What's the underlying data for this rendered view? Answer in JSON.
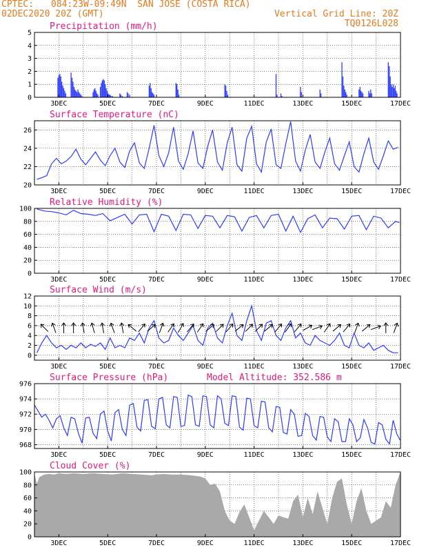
{
  "header": {
    "source": "CPTEC:",
    "location": "084:23W-09:49N  SAN JOSE (COSTA RICA)",
    "run": "02DEC2020 20Z (GMT)",
    "grid_note": "Vertical Grid Line: 20Z",
    "code": "TQ0126L028"
  },
  "chart_data": [
    {
      "type": "bar",
      "title": "Precipitation (mm/h)",
      "ylim": [
        0,
        5
      ],
      "yticks": [
        0,
        1,
        2,
        3,
        4,
        5
      ],
      "xticks": [
        "3DEC",
        "5DEC",
        "7DEC",
        "9DEC",
        "11DEC",
        "13DEC",
        "15DEC",
        "17DEC"
      ],
      "color": "#2b3bff",
      "x_day": [
        2.96,
        3.0,
        3.04,
        3.08,
        3.12,
        3.16,
        3.2,
        3.24,
        3.28,
        3.5,
        3.54,
        3.58,
        3.62,
        3.66,
        3.7,
        3.74,
        3.78,
        3.82,
        3.86,
        3.9,
        3.94,
        4.4,
        4.44,
        4.48,
        4.52,
        4.56,
        4.6,
        4.7,
        4.74,
        4.78,
        4.82,
        4.86,
        4.9,
        4.94,
        4.98,
        5.02,
        5.06,
        5.1,
        5.14,
        5.2,
        5.5,
        5.54,
        5.6,
        5.8,
        5.84,
        5.9,
        6.7,
        6.74,
        6.78,
        6.82,
        6.86,
        6.9,
        7.8,
        7.84,
        7.88,
        7.92,
        9.8,
        9.84,
        9.88,
        9.92,
        11.9,
        11.94,
        12.1,
        12.14,
        12.9,
        12.94,
        13.7,
        13.74,
        14.6,
        14.64,
        14.68,
        14.72,
        14.76,
        14.8,
        15.3,
        15.34,
        15.38,
        15.42,
        15.46,
        15.7,
        15.74,
        15.78,
        15.82,
        16.5,
        16.54,
        16.58,
        16.62,
        16.66,
        16.7,
        16.74,
        16.78,
        16.82,
        16.86
      ],
      "values": [
        1.5,
        1.7,
        1.8,
        1.6,
        1.2,
        0.9,
        0.7,
        0.5,
        0.3,
        1.9,
        1.5,
        1.2,
        0.8,
        0.6,
        0.5,
        0.4,
        0.6,
        0.4,
        0.3,
        0.2,
        0.1,
        0.4,
        0.6,
        0.7,
        0.5,
        0.3,
        0.2,
        0.8,
        1.1,
        1.3,
        1.4,
        1.3,
        1.0,
        0.7,
        0.5,
        0.3,
        0.2,
        0.2,
        0.1,
        0.1,
        0.3,
        0.2,
        0.1,
        0.4,
        0.3,
        0.2,
        0.9,
        1.1,
        0.7,
        0.4,
        0.3,
        0.2,
        1.1,
        1.0,
        0.6,
        0.2,
        1.0,
        0.9,
        0.5,
        0.2,
        1.8,
        0.2,
        0.3,
        0.1,
        0.8,
        0.4,
        0.6,
        0.3,
        2.7,
        1.6,
        0.9,
        0.6,
        0.4,
        0.2,
        0.6,
        0.8,
        0.5,
        0.4,
        0.3,
        0.5,
        0.3,
        0.6,
        0.3,
        2.7,
        2.4,
        1.6,
        1.0,
        0.8,
        1.0,
        0.7,
        0.9,
        0.5,
        0.3
      ]
    },
    {
      "type": "line",
      "title": "Surface Temperature (nC)",
      "ylim": [
        20,
        27
      ],
      "yticks": [
        20,
        22,
        24,
        26
      ],
      "xticks": [
        "3DEC",
        "5DEC",
        "7DEC",
        "9DEC",
        "11DEC",
        "13DEC",
        "15DEC",
        "17DEC"
      ],
      "color": "#2b3bff",
      "x_day": [
        2.1,
        2.3,
        2.5,
        2.7,
        2.9,
        3.1,
        3.3,
        3.5,
        3.7,
        3.9,
        4.1,
        4.3,
        4.5,
        4.7,
        4.9,
        5.1,
        5.3,
        5.5,
        5.7,
        5.9,
        6.1,
        6.3,
        6.5,
        6.7,
        6.9,
        7.1,
        7.3,
        7.5,
        7.7,
        7.9,
        8.1,
        8.3,
        8.5,
        8.7,
        8.9,
        9.1,
        9.3,
        9.5,
        9.7,
        9.9,
        10.1,
        10.3,
        10.5,
        10.7,
        10.9,
        11.1,
        11.3,
        11.5,
        11.7,
        11.9,
        12.1,
        12.3,
        12.5,
        12.7,
        12.9,
        13.1,
        13.3,
        13.5,
        13.7,
        13.9,
        14.1,
        14.3,
        14.5,
        14.7,
        14.9,
        15.1,
        15.3,
        15.5,
        15.7,
        15.9,
        16.1,
        16.3,
        16.5,
        16.7,
        16.9
      ],
      "values": [
        20.6,
        20.8,
        21.0,
        22.3,
        22.9,
        22.3,
        22.6,
        23.1,
        23.9,
        22.8,
        22.2,
        22.9,
        23.6,
        22.7,
        22.1,
        23.2,
        24.0,
        22.5,
        21.9,
        23.7,
        24.6,
        22.4,
        21.8,
        24.0,
        26.5,
        23.2,
        22.0,
        23.5,
        26.3,
        22.6,
        21.7,
        23.4,
        25.9,
        22.4,
        21.8,
        24.2,
        26.0,
        22.5,
        21.6,
        24.6,
        26.3,
        22.2,
        21.5,
        25.1,
        26.4,
        22.3,
        21.4,
        24.7,
        26.1,
        22.2,
        21.8,
        24.5,
        26.9,
        22.6,
        21.5,
        23.8,
        25.5,
        22.5,
        21.8,
        23.6,
        25.1,
        22.3,
        21.6,
        23.2,
        24.7,
        22.0,
        21.4,
        23.4,
        25.1,
        22.5,
        21.7,
        23.2,
        24.8,
        23.9,
        24.1
      ]
    },
    {
      "type": "line",
      "title": "Relative Humidity (%)",
      "ylim": [
        0,
        100
      ],
      "yticks": [
        0,
        20,
        40,
        60,
        80,
        100
      ],
      "xticks": [
        "3DEC",
        "5DEC",
        "7DEC",
        "9DEC",
        "11DEC",
        "13DEC",
        "15DEC",
        "17DEC"
      ],
      "color": "#2b3bff",
      "x_day": [
        2.1,
        2.4,
        2.7,
        3.0,
        3.3,
        3.6,
        3.9,
        4.2,
        4.5,
        4.8,
        5.1,
        5.4,
        5.7,
        6.0,
        6.3,
        6.6,
        6.9,
        7.2,
        7.5,
        7.8,
        8.1,
        8.4,
        8.7,
        9.0,
        9.3,
        9.6,
        9.9,
        10.2,
        10.5,
        10.8,
        11.1,
        11.4,
        11.7,
        12.0,
        12.3,
        12.6,
        12.9,
        13.2,
        13.5,
        13.8,
        14.1,
        14.4,
        14.7,
        15.0,
        15.3,
        15.6,
        15.9,
        16.2,
        16.5,
        16.8,
        16.95
      ],
      "values": [
        99,
        96,
        95,
        93,
        90,
        97,
        92,
        91,
        89,
        92,
        81,
        86,
        91,
        76,
        90,
        91,
        64,
        91,
        88,
        66,
        91,
        90,
        69,
        89,
        88,
        70,
        89,
        87,
        65,
        86,
        89,
        70,
        89,
        91,
        65,
        88,
        63,
        84,
        90,
        70,
        85,
        84,
        68,
        88,
        89,
        67,
        88,
        85,
        70,
        80,
        78
      ]
    },
    {
      "type": "line",
      "title": "Surface Wind (m/s)",
      "ylim": [
        -1,
        12
      ],
      "yticks": [
        0,
        2,
        4,
        6,
        8,
        10,
        12
      ],
      "xticks": [
        "3DEC",
        "5DEC",
        "7DEC",
        "9DEC",
        "11DEC",
        "13DEC",
        "15DEC",
        "17DEC"
      ],
      "color": "#2b3bff",
      "x_day": [
        2.1,
        2.3,
        2.5,
        2.7,
        2.9,
        3.1,
        3.3,
        3.5,
        3.7,
        3.9,
        4.1,
        4.3,
        4.5,
        4.7,
        4.9,
        5.1,
        5.3,
        5.5,
        5.7,
        5.9,
        6.1,
        6.3,
        6.5,
        6.7,
        6.9,
        7.1,
        7.3,
        7.5,
        7.7,
        7.9,
        8.1,
        8.3,
        8.5,
        8.7,
        8.9,
        9.1,
        9.3,
        9.5,
        9.7,
        9.9,
        10.1,
        10.3,
        10.5,
        10.7,
        10.9,
        11.1,
        11.3,
        11.5,
        11.7,
        11.9,
        12.1,
        12.3,
        12.5,
        12.7,
        12.9,
        13.1,
        13.3,
        13.5,
        13.7,
        13.9,
        14.1,
        14.3,
        14.5,
        14.7,
        14.9,
        15.1,
        15.3,
        15.5,
        15.7,
        15.9,
        16.1,
        16.3,
        16.5,
        16.7,
        16.9
      ],
      "values": [
        0.5,
        2.5,
        4.0,
        2.5,
        1.5,
        2.0,
        1.2,
        2.0,
        1.5,
        2.5,
        1.5,
        2.2,
        1.8,
        2.5,
        1.2,
        3.5,
        1.5,
        2.0,
        1.5,
        3.5,
        3.0,
        4.5,
        2.5,
        5.5,
        7.0,
        3.5,
        2.5,
        3.0,
        5.5,
        4.0,
        3.0,
        4.5,
        6.0,
        3.0,
        2.0,
        5.5,
        6.5,
        3.5,
        2.5,
        6.0,
        8.5,
        4.0,
        3.0,
        7.0,
        10.0,
        5.0,
        3.0,
        6.5,
        7.0,
        4.0,
        3.0,
        5.5,
        7.0,
        3.5,
        4.5,
        2.5,
        2.0,
        4.0,
        3.0,
        2.5,
        2.0,
        3.0,
        4.5,
        2.0,
        1.5,
        4.5,
        2.0,
        1.5,
        2.5,
        1.0,
        1.5,
        2.0,
        1.0,
        0.5,
        0.5
      ],
      "arrows_day": [
        2.4,
        2.8,
        3.2,
        3.6,
        4.0,
        4.4,
        4.8,
        5.2,
        5.6,
        6.0,
        6.4,
        6.8,
        7.2,
        7.6,
        8.0,
        8.4,
        8.8,
        9.2,
        9.6,
        10.0,
        10.4,
        10.8,
        11.2,
        11.6,
        12.0,
        12.4,
        12.8,
        13.2,
        13.6,
        14.0,
        14.4,
        14.8,
        15.2,
        15.6,
        16.0,
        16.4,
        16.8
      ],
      "arrows_deg": [
        135,
        160,
        180,
        180,
        170,
        165,
        170,
        160,
        170,
        130,
        220,
        230,
        200,
        215,
        210,
        220,
        215,
        230,
        225,
        220,
        230,
        225,
        225,
        230,
        220,
        215,
        220,
        240,
        250,
        215,
        230,
        220,
        200,
        230,
        250,
        180,
        200
      ]
    },
    {
      "type": "line",
      "title": "Surface Pressure (hPa)",
      "annotation": "Model Altitude: 352.586 m",
      "ylim": [
        967.5,
        976
      ],
      "yticks": [
        968,
        970,
        972,
        974,
        976
      ],
      "xticks": [
        "3DEC",
        "5DEC",
        "7DEC",
        "9DEC",
        "11DEC",
        "13DEC",
        "15DEC",
        "17DEC"
      ],
      "color": "#2b3bff",
      "x_day": [
        2.0,
        2.15,
        2.3,
        2.45,
        2.6,
        2.75,
        2.9,
        3.05,
        3.2,
        3.35,
        3.5,
        3.65,
        3.8,
        3.95,
        4.1,
        4.25,
        4.4,
        4.55,
        4.7,
        4.85,
        5.0,
        5.15,
        5.3,
        5.45,
        5.6,
        5.75,
        5.9,
        6.05,
        6.2,
        6.35,
        6.5,
        6.65,
        6.8,
        6.95,
        7.1,
        7.25,
        7.4,
        7.55,
        7.7,
        7.85,
        8.0,
        8.15,
        8.3,
        8.45,
        8.6,
        8.75,
        8.9,
        9.05,
        9.2,
        9.35,
        9.5,
        9.65,
        9.8,
        9.95,
        10.1,
        10.25,
        10.4,
        10.55,
        10.7,
        10.85,
        11.0,
        11.15,
        11.3,
        11.45,
        11.6,
        11.75,
        11.9,
        12.05,
        12.2,
        12.35,
        12.5,
        12.65,
        12.8,
        12.95,
        13.1,
        13.25,
        13.4,
        13.55,
        13.7,
        13.85,
        14.0,
        14.15,
        14.3,
        14.45,
        14.6,
        14.75,
        14.9,
        15.05,
        15.2,
        15.35,
        15.5,
        15.65,
        15.8,
        15.95,
        16.1,
        16.25,
        16.4,
        16.55,
        16.7,
        16.85,
        16.98
      ],
      "values": [
        973.2,
        972.4,
        971.6,
        972.0,
        971.2,
        970.2,
        971.4,
        971.8,
        970.2,
        969.2,
        971.6,
        971.4,
        969.5,
        968.2,
        971.5,
        971.6,
        969.5,
        968.8,
        972.0,
        972.4,
        969.8,
        968.5,
        972.2,
        972.6,
        970.0,
        969.2,
        973.2,
        973.4,
        970.3,
        969.8,
        973.8,
        973.9,
        970.4,
        970.1,
        974.0,
        974.2,
        970.6,
        970.2,
        974.3,
        974.2,
        970.4,
        970.5,
        974.5,
        974.3,
        970.6,
        970.4,
        974.4,
        974.3,
        970.6,
        970.2,
        974.4,
        974.0,
        970.8,
        970.5,
        974.4,
        974.3,
        970.3,
        969.9,
        974.1,
        974.0,
        970.5,
        970.2,
        973.7,
        973.6,
        970.2,
        969.7,
        973.0,
        972.9,
        969.6,
        969.4,
        972.6,
        972.0,
        969.1,
        969.2,
        972.1,
        971.7,
        969.2,
        968.6,
        971.7,
        971.6,
        969.0,
        968.4,
        971.4,
        971.0,
        968.4,
        968.4,
        971.4,
        970.6,
        968.4,
        968.9,
        971.3,
        970.2,
        968.3,
        968.1,
        970.9,
        970.6,
        968.7,
        968.1,
        971.2,
        969.4,
        968.6
      ]
    },
    {
      "type": "area",
      "title": "Cloud Cover (%)",
      "ylim": [
        0,
        100
      ],
      "yticks": [
        0,
        20,
        40,
        60,
        80,
        100
      ],
      "xticks": [
        "3DEC",
        "5DEC",
        "7DEC",
        "9DEC",
        "11DEC",
        "13DEC",
        "15DEC",
        "17DEC"
      ],
      "color": "#a9a9a9",
      "x_day": [
        2.0,
        2.1,
        2.2,
        2.4,
        2.6,
        2.8,
        3.0,
        3.3,
        3.6,
        4.0,
        4.4,
        4.8,
        5.2,
        5.6,
        6.0,
        6.4,
        6.8,
        7.0,
        7.3,
        7.6,
        8.0,
        8.4,
        8.8,
        9.0,
        9.2,
        9.4,
        9.6,
        9.8,
        10.0,
        10.2,
        10.4,
        10.6,
        10.8,
        11.0,
        11.2,
        11.4,
        11.6,
        11.8,
        12.0,
        12.2,
        12.4,
        12.6,
        12.8,
        13.0,
        13.2,
        13.4,
        13.6,
        13.8,
        14.0,
        14.2,
        14.4,
        14.6,
        14.8,
        15.0,
        15.2,
        15.4,
        15.6,
        15.8,
        16.0,
        16.2,
        16.4,
        16.6,
        16.8,
        17.0
      ],
      "values": [
        96,
        82,
        92,
        96,
        97,
        96,
        98,
        97,
        98,
        97,
        98,
        97,
        96,
        98,
        97,
        96,
        95,
        96,
        97,
        96,
        96,
        95,
        93,
        90,
        80,
        82,
        70,
        40,
        25,
        20,
        38,
        50,
        30,
        10,
        25,
        40,
        30,
        20,
        33,
        30,
        28,
        55,
        65,
        30,
        60,
        35,
        70,
        45,
        20,
        60,
        85,
        90,
        50,
        20,
        55,
        75,
        40,
        20,
        25,
        30,
        55,
        45,
        80,
        100
      ]
    }
  ]
}
